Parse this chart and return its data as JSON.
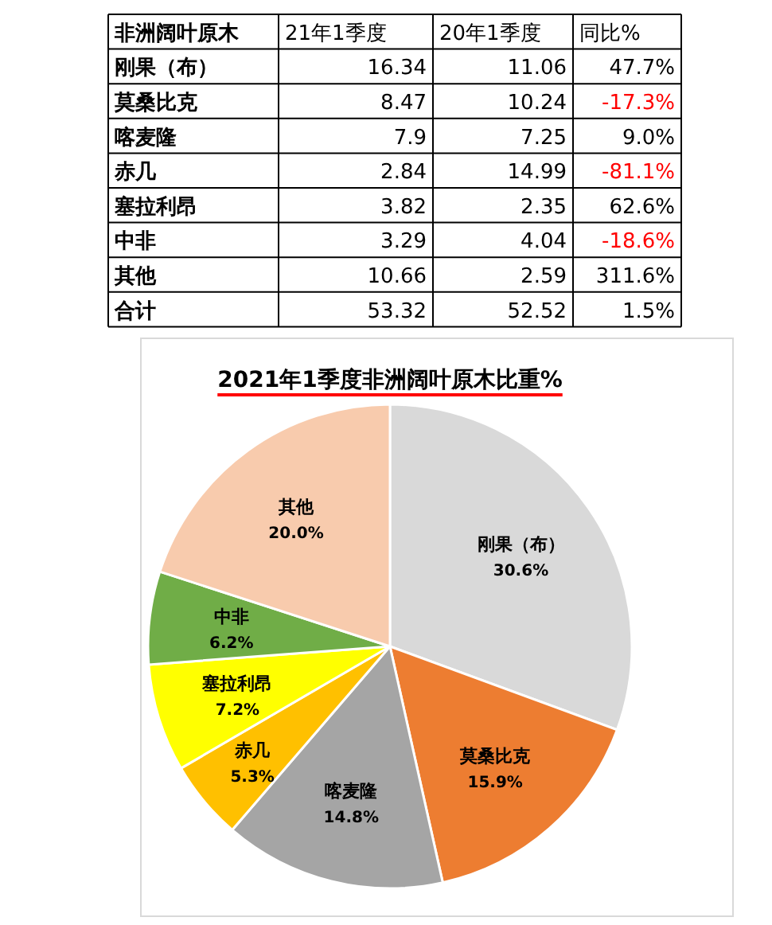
{
  "chart_data": [
    {
      "type": "other",
      "data_labels": true,
      "title": "非洲阔叶原木",
      "categories": [
        "刚果（布）",
        "莫桑比克",
        "喀麦隆",
        "赤几",
        "塞拉利昂",
        "中非",
        "其他",
        "合计"
      ],
      "series": [
        {
          "name": "21年1季度",
          "values": [
            16.34,
            8.47,
            7.9,
            2.84,
            3.82,
            3.29,
            10.66,
            53.32
          ]
        },
        {
          "name": "20年1季度",
          "values": [
            11.06,
            10.24,
            7.25,
            14.99,
            2.35,
            4.04,
            2.59,
            52.52
          ]
        },
        {
          "name": "同比%",
          "values": [
            47.7,
            -17.3,
            9.0,
            -81.1,
            62.6,
            -18.6,
            311.6,
            1.5
          ],
          "value_labels": [
            "47.7%",
            "-17.3%",
            "9.0%",
            "-81.1%",
            "62.6%",
            "-18.6%",
            "311.6%",
            "1.5%"
          ],
          "colors": [
            "#000000",
            "#ff0000",
            "#000000",
            "#ff0000",
            "#000000",
            "#ff0000",
            "#000000",
            "#000000"
          ]
        }
      ]
    },
    {
      "type": "pie",
      "title": "2021年1季度非洲阔叶原木比重%",
      "categories": [
        "刚果（布）",
        "莫桑比克",
        "喀麦隆",
        "赤几",
        "塞拉利昂",
        "中非",
        "其他"
      ],
      "values": [
        30.6,
        15.9,
        14.8,
        5.3,
        7.2,
        6.2,
        20.0
      ],
      "value_labels": [
        "30.6%",
        "15.9%",
        "14.8%",
        "5.3%",
        "7.2%",
        "6.2%",
        "20.0%"
      ],
      "colors": [
        "#d9d9d9",
        "#ed7d31",
        "#a5a5a5",
        "#ffc000",
        "#ffff00",
        "#70ad47",
        "#f8cbad"
      ]
    }
  ]
}
